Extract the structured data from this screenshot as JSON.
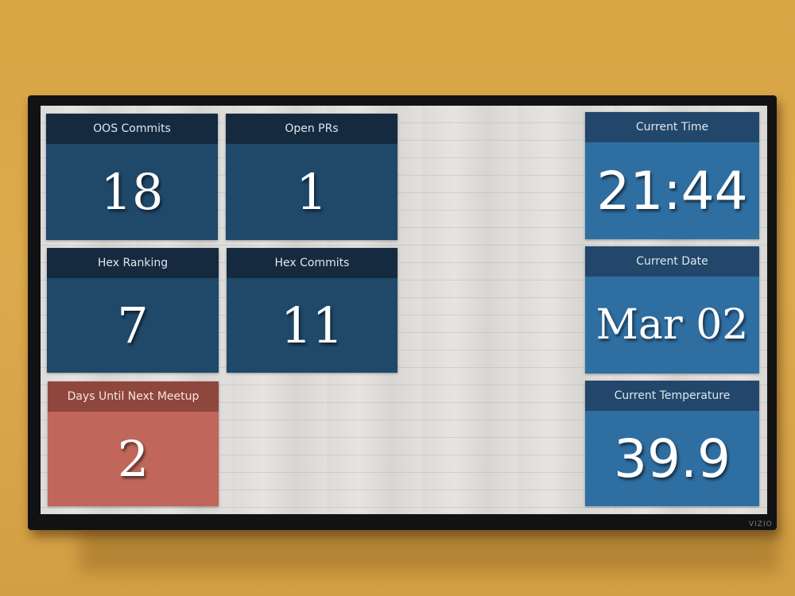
{
  "tiles": [
    {
      "label": "OOS Commits",
      "value": "18"
    },
    {
      "label": "Open PRs",
      "value": "1"
    },
    {
      "label": "Hex Ranking",
      "value": "7"
    },
    {
      "label": "Hex Commits",
      "value": "11"
    },
    {
      "label": "Days Until Next Meetup",
      "value": "2"
    },
    {
      "label": "Current Time",
      "value": "21:44"
    },
    {
      "label": "Current Date",
      "value": "Mar 02"
    },
    {
      "label": "Current Temperature",
      "value": "39.9"
    }
  ],
  "tv_brand": "VIZIO",
  "colors": {
    "dark_tile": "#1f4869",
    "light_tile": "#2f6ea1",
    "coral_tile": "#c0665a",
    "wall": "#d9a545"
  }
}
